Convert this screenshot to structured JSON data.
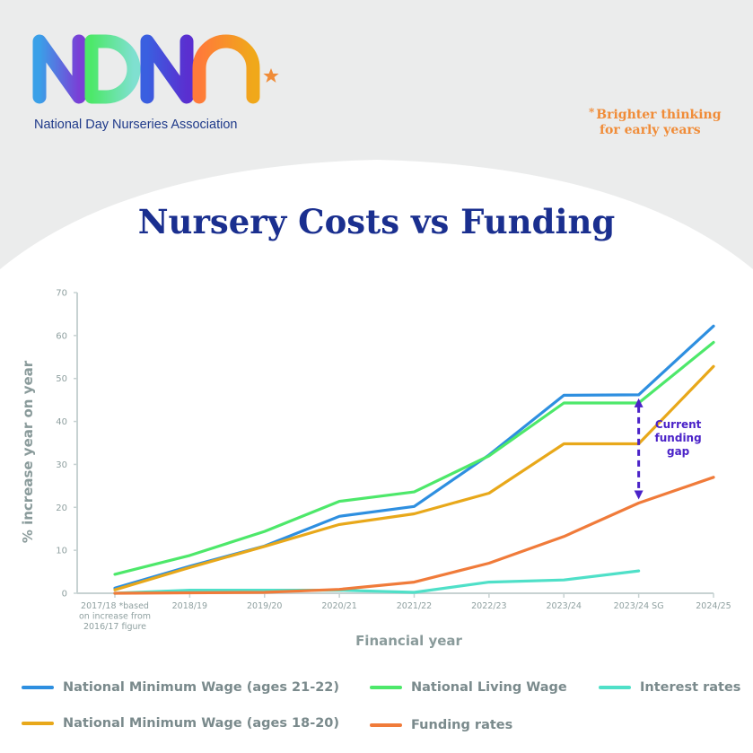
{
  "header": {
    "logo_text": "NDNA",
    "org_name": "National Day Nurseries Association",
    "tagline_star": "*",
    "tagline_line1": "Brighter thinking",
    "tagline_line2": "for early years"
  },
  "title": "Nursery Costs vs Funding",
  "colors": {
    "background_grey": "#ebecec",
    "title_blue": "#1a2f8f",
    "accent_orange": "#f08c38",
    "annotation_purple": "#4a22c8",
    "axis_grey": "#8fa0a0"
  },
  "chart_data": {
    "type": "line",
    "categories": [
      "2017/18 *based on increase from 2016/17 figure",
      "2018/19",
      "2019/20",
      "2020/21",
      "2021/22",
      "2022/23",
      "2023/24",
      "2023/24 SG",
      "2024/25"
    ],
    "category_lines": [
      [
        "2017/18 *based",
        "on increase from",
        "2016/17 figure"
      ],
      [
        "2018/19"
      ],
      [
        "2019/20"
      ],
      [
        "2020/21"
      ],
      [
        "2021/22"
      ],
      [
        "2022/23"
      ],
      [
        "2023/24"
      ],
      [
        "2023/24 SG"
      ],
      [
        "2024/25"
      ]
    ],
    "xlabel": "Financial year",
    "ylabel": "% increase year on year",
    "ylim": [
      0,
      70
    ],
    "yticks": [
      0,
      10,
      20,
      30,
      40,
      50,
      60,
      70
    ],
    "grid": false,
    "legend_position": "bottom",
    "series": [
      {
        "name": "National Minimum Wage (ages 21-22)",
        "color": "#2e8fe0",
        "values": [
          1.2,
          6.3,
          11.0,
          17.9,
          20.2,
          32.2,
          46.1,
          46.2,
          62.2
        ]
      },
      {
        "name": "National Living Wage",
        "color": "#4de86a",
        "values": [
          4.4,
          8.8,
          14.4,
          21.4,
          23.6,
          32.0,
          44.3,
          44.3,
          58.4
        ]
      },
      {
        "name": "Interest rates",
        "color": "#4fe0c8",
        "values": [
          0.0,
          0.7,
          0.7,
          0.7,
          0.2,
          2.6,
          3.1,
          5.2,
          null
        ]
      },
      {
        "name": "National Minimum Wage (ages 18-20)",
        "color": "#e8a81a",
        "values": [
          0.8,
          6.0,
          10.9,
          16.0,
          18.5,
          23.3,
          34.8,
          34.8,
          52.8
        ]
      },
      {
        "name": "Funding rates",
        "color": "#f07b3a",
        "values": [
          0.0,
          0.1,
          0.2,
          0.9,
          2.6,
          7.0,
          13.2,
          21.0,
          27.0
        ]
      }
    ],
    "annotations": [
      {
        "text": "Current funding gap",
        "lines": [
          "Current",
          "funding",
          "gap"
        ],
        "category": "2023/24 SG",
        "from": 46.2,
        "to": 21.0
      }
    ]
  }
}
